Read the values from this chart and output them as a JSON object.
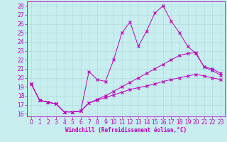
{
  "xlabel": "Windchill (Refroidissement éolien,°C)",
  "background_color": "#c8eef0",
  "grid_color": "#b0dde0",
  "line_color": "#bb00bb",
  "xlim": [
    -0.5,
    23.5
  ],
  "ylim": [
    15.7,
    28.5
  ],
  "yticks": [
    16,
    17,
    18,
    19,
    20,
    21,
    22,
    23,
    24,
    25,
    26,
    27,
    28
  ],
  "xticks": [
    0,
    1,
    2,
    3,
    4,
    5,
    6,
    7,
    8,
    9,
    10,
    11,
    12,
    13,
    14,
    15,
    16,
    17,
    18,
    19,
    20,
    21,
    22,
    23
  ],
  "line1_x": [
    0,
    1,
    2,
    3,
    4,
    5,
    6,
    7,
    8,
    9,
    10,
    11,
    12,
    13,
    14,
    15,
    16,
    17,
    18,
    19,
    20,
    21,
    22,
    23
  ],
  "line1_y": [
    19.3,
    17.5,
    17.3,
    17.1,
    16.2,
    16.2,
    16.3,
    20.7,
    19.8,
    19.6,
    22.0,
    25.0,
    26.2,
    23.5,
    25.2,
    27.2,
    28.0,
    26.3,
    25.0,
    23.5,
    22.7,
    21.2,
    21.0,
    20.5
  ],
  "line2_x": [
    0,
    1,
    2,
    3,
    4,
    5,
    6,
    7,
    8,
    9,
    10,
    11,
    12,
    13,
    14,
    15,
    16,
    17,
    18,
    19,
    20,
    21,
    22,
    23
  ],
  "line2_y": [
    19.3,
    17.5,
    17.3,
    17.1,
    16.2,
    16.2,
    16.3,
    17.2,
    17.5,
    17.8,
    18.1,
    18.4,
    18.7,
    18.9,
    19.1,
    19.3,
    19.6,
    19.8,
    20.0,
    20.2,
    20.4,
    20.2,
    20.0,
    19.8
  ],
  "line3_x": [
    0,
    1,
    2,
    3,
    4,
    5,
    6,
    7,
    8,
    9,
    10,
    11,
    12,
    13,
    14,
    15,
    16,
    17,
    18,
    19,
    20,
    21,
    22,
    23
  ],
  "line3_y": [
    19.3,
    17.5,
    17.3,
    17.1,
    16.2,
    16.2,
    16.3,
    17.2,
    17.6,
    18.0,
    18.5,
    19.0,
    19.5,
    20.0,
    20.5,
    21.0,
    21.5,
    22.0,
    22.5,
    22.7,
    22.8,
    21.2,
    20.8,
    20.3
  ],
  "tick_fontsize": 5.5,
  "xlabel_fontsize": 5.5
}
